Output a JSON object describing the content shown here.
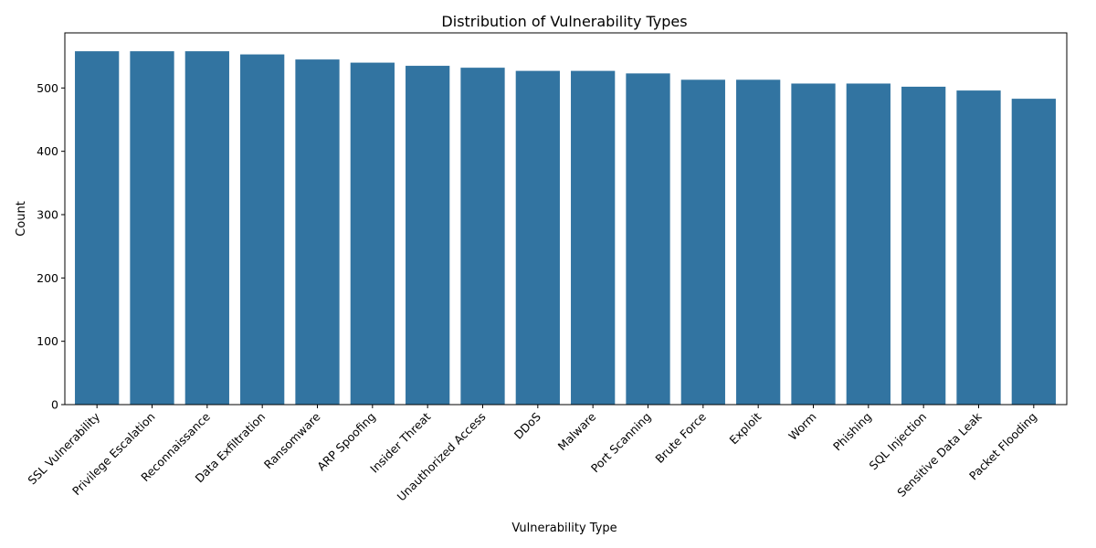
{
  "chart_data": {
    "type": "bar",
    "title": "Distribution of Vulnerability Types",
    "xlabel": "Vulnerability Type",
    "ylabel": "Count",
    "ylim": [
      0,
      587
    ],
    "yticks": [
      0,
      100,
      200,
      300,
      400,
      500
    ],
    "grid": false,
    "legend": "none",
    "bar_color": "#3274a1",
    "categories": [
      "SSL Vulnerability",
      "Privilege Escalation",
      "Reconnaissance",
      "Data Exfiltration",
      "Ransomware",
      "ARP Spoofing",
      "Insider Threat",
      "Unauthorized Access",
      "DDoS",
      "Malware",
      "Port Scanning",
      "Brute Force",
      "Exploit",
      "Worm",
      "Phishing",
      "SQL Injection",
      "Sensitive Data Leak",
      "Packet Flooding"
    ],
    "values": [
      558,
      558,
      558,
      553,
      545,
      540,
      535,
      532,
      527,
      527,
      523,
      513,
      513,
      507,
      507,
      502,
      496,
      483
    ]
  }
}
